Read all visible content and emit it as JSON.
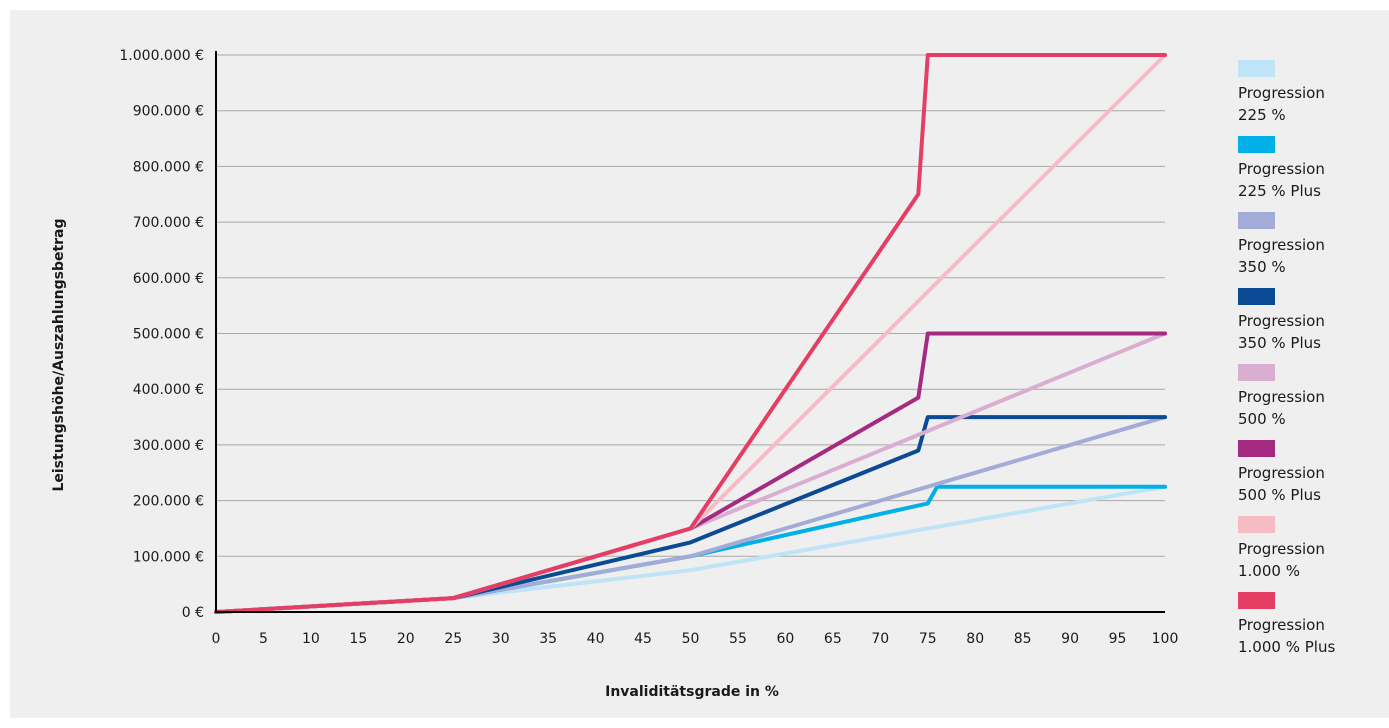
{
  "chart_data": {
    "type": "line",
    "title": "",
    "xlabel": "Invaliditätsgrade in %",
    "ylabel": "Leistungshöhe/Auszahlungsbetrag",
    "xlim": [
      0,
      100
    ],
    "ylim": [
      0,
      1000000
    ],
    "x_ticks": [
      "0",
      "5",
      "10",
      "15",
      "20",
      "25",
      "30",
      "35",
      "40",
      "45",
      "50",
      "55",
      "60",
      "65",
      "70",
      "75",
      "80",
      "85",
      "90",
      "95",
      "100"
    ],
    "y_ticks": [
      "0 €",
      "100.000 €",
      "200.000 €",
      "300.000 €",
      "400.000 €",
      "500.000 €",
      "600.000 €",
      "700.000 €",
      "800.000 €",
      "900.000 €",
      "1.000.000 €"
    ],
    "grid": "horizontal",
    "legend_position": "right",
    "series": [
      {
        "name": "Progression 225%",
        "color": "#bfe3f7",
        "points": [
          [
            0,
            0
          ],
          [
            25,
            25000
          ],
          [
            50,
            75000
          ],
          [
            100,
            225000
          ]
        ]
      },
      {
        "name": "Progression 225% Plus",
        "color": "#00b0e6",
        "points": [
          [
            0,
            0
          ],
          [
            25,
            25000
          ],
          [
            50,
            100000
          ],
          [
            75,
            195000
          ],
          [
            76,
            225000
          ],
          [
            100,
            225000
          ]
        ]
      },
      {
        "name": "Progression 350%",
        "color": "#a2acd6",
        "points": [
          [
            0,
            0
          ],
          [
            25,
            25000
          ],
          [
            50,
            100000
          ],
          [
            100,
            350000
          ]
        ]
      },
      {
        "name": "Progression 350% Plus",
        "color": "#0b4a94",
        "points": [
          [
            0,
            0
          ],
          [
            25,
            25000
          ],
          [
            50,
            125000
          ],
          [
            74,
            290000
          ],
          [
            75,
            350000
          ],
          [
            100,
            350000
          ]
        ]
      },
      {
        "name": "Progression 500%",
        "color": "#d9aed1",
        "points": [
          [
            0,
            0
          ],
          [
            25,
            25000
          ],
          [
            50,
            150000
          ],
          [
            100,
            500000
          ]
        ]
      },
      {
        "name": "Progression 500% Plus",
        "color": "#a52a82",
        "points": [
          [
            0,
            0
          ],
          [
            25,
            25000
          ],
          [
            50,
            150000
          ],
          [
            74,
            385000
          ],
          [
            75,
            500000
          ],
          [
            100,
            500000
          ]
        ]
      },
      {
        "name": "Progression 1.000%",
        "color": "#f5bcc3",
        "points": [
          [
            0,
            0
          ],
          [
            25,
            25000
          ],
          [
            50,
            150000
          ],
          [
            100,
            1000000
          ]
        ]
      },
      {
        "name": "Progression 1.000% Plus",
        "color": "#e53e64",
        "points": [
          [
            0,
            0
          ],
          [
            25,
            25000
          ],
          [
            50,
            150000
          ],
          [
            74,
            750000
          ],
          [
            75,
            1000000
          ],
          [
            100,
            1000000
          ]
        ]
      }
    ]
  },
  "legend": [
    {
      "label": "Progression\n225 %",
      "color": "#bfe3f7"
    },
    {
      "label": "Progression\n225 % Plus",
      "color": "#00b0e6"
    },
    {
      "label": "Progression\n350 %",
      "color": "#a2acd6"
    },
    {
      "label": "Progression\n350 % Plus",
      "color": "#0b4a94"
    },
    {
      "label": "Progression\n500 %",
      "color": "#d9aed1"
    },
    {
      "label": "Progression\n500 % Plus",
      "color": "#a52a82"
    },
    {
      "label": "Progression\n1.000 %",
      "color": "#f5bcc3"
    },
    {
      "label": "Progression\n1.000 % Plus",
      "color": "#e53e64"
    }
  ]
}
